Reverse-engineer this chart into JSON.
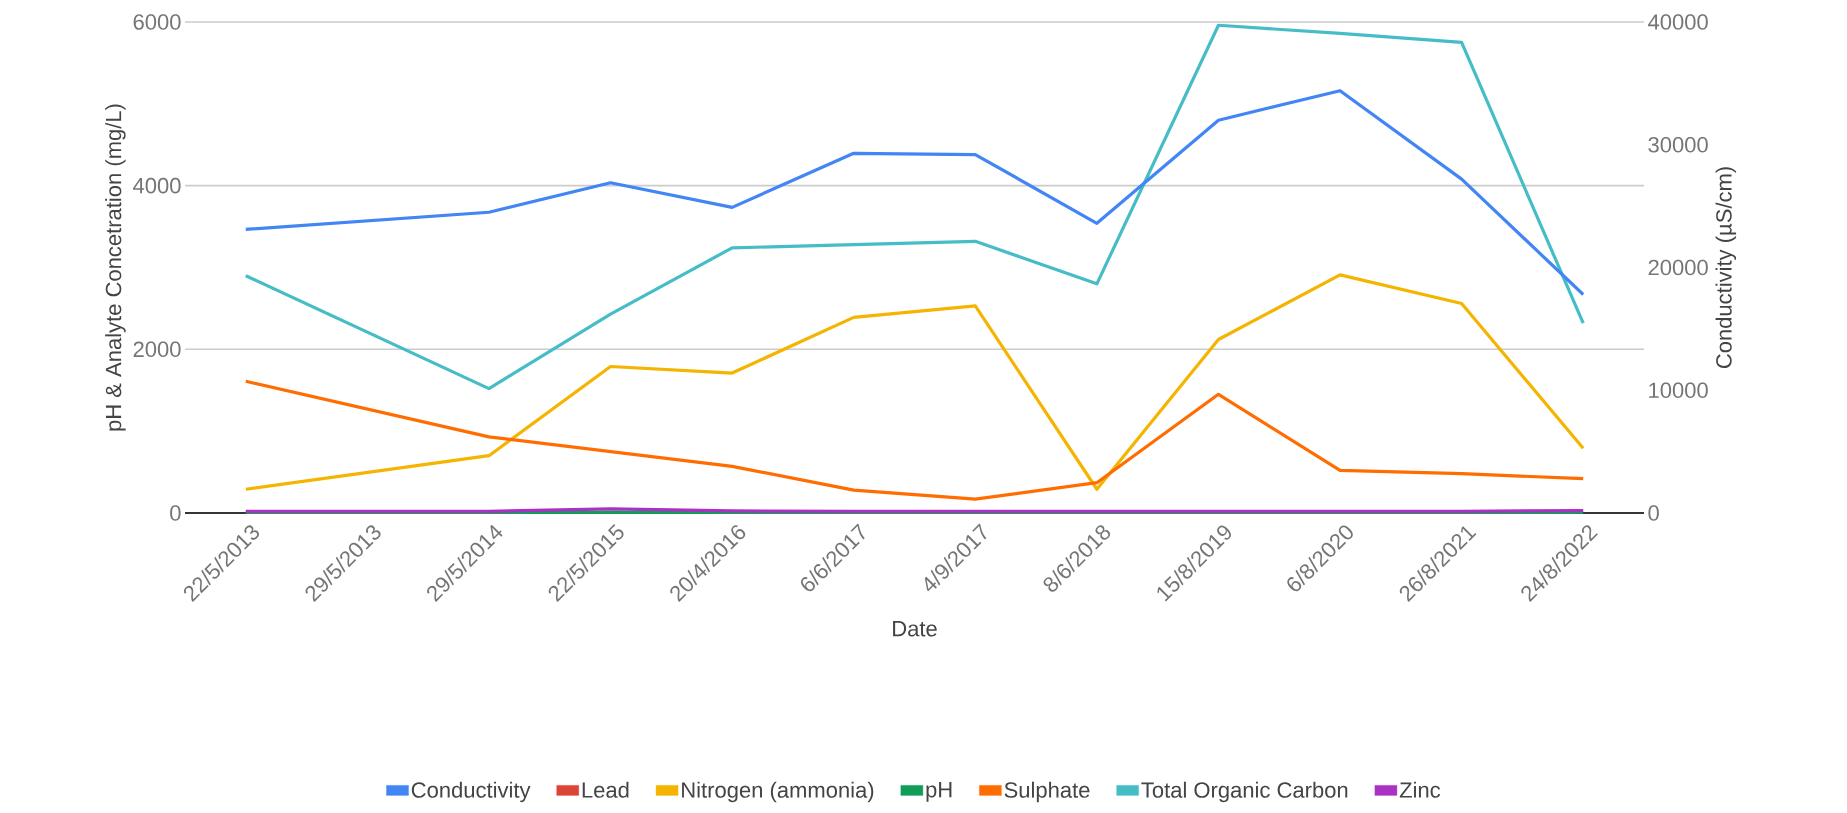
{
  "chart_data": {
    "type": "line",
    "xlabel": "Date",
    "ylabel": "pH & Analyte Concetration (mg/L)",
    "y2label": "Conductivity (µS/cm)",
    "categories": [
      "22/5/2013",
      "29/5/2013",
      "29/5/2014",
      "22/5/2015",
      "20/4/2016",
      "6/6/2017",
      "4/9/2017",
      "8/6/2018",
      "15/8/2019",
      "6/8/2020",
      "26/8/2021",
      "24/8/2022"
    ],
    "series": [
      {
        "name": "Conductivity",
        "color": "#4285f4",
        "axis": "y2",
        "values": [
          23100,
          null,
          24500,
          26900,
          24900,
          29300,
          29200,
          23600,
          32000,
          34400,
          27200,
          17800
        ]
      },
      {
        "name": "Lead",
        "color": "#db4437",
        "values": [
          null,
          null,
          null,
          null,
          null,
          null,
          null,
          null,
          null,
          null,
          null,
          null
        ]
      },
      {
        "name": "Nitrogen (ammonia)",
        "color": "#f4b400",
        "values": [
          290,
          null,
          700,
          1790,
          1710,
          2390,
          2530,
          290,
          2120,
          2910,
          2560,
          790
        ]
      },
      {
        "name": "pH",
        "color": "#0f9d58",
        "values": [
          7,
          null,
          7,
          7,
          7,
          7,
          7,
          7,
          7,
          7,
          7,
          7
        ]
      },
      {
        "name": "Sulphate",
        "color": "#ff6d01",
        "values": [
          1610,
          null,
          930,
          750,
          570,
          280,
          170,
          370,
          1450,
          520,
          480,
          420
        ]
      },
      {
        "name": "Total Organic Carbon",
        "color": "#46bdc6",
        "values": [
          2900,
          null,
          1520,
          2430,
          3240,
          3280,
          3320,
          2800,
          5960,
          5860,
          5750,
          2320
        ]
      },
      {
        "name": "Zinc",
        "color": "#ab30c4",
        "values": [
          20,
          null,
          20,
          50,
          25,
          20,
          20,
          20,
          20,
          20,
          20,
          30
        ]
      }
    ],
    "ylim": [
      0,
      6000
    ],
    "yticks": [
      0,
      2000,
      4000,
      6000
    ],
    "y2lim": [
      0,
      40000
    ],
    "y2ticks": [
      0,
      10000,
      20000,
      30000,
      40000
    ],
    "grid": "y",
    "legend": "bottom"
  }
}
